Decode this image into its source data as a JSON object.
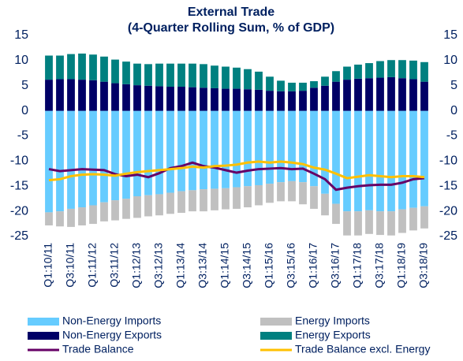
{
  "chart_data": {
    "type": "bar",
    "title": "External Trade",
    "subtitle": "(4-Quarter Rolling Sum, % of GDP)",
    "categories": [
      "Q1:10/11",
      null,
      "Q3:10/11",
      null,
      "Q1:11/12",
      null,
      "Q3:11/12",
      null,
      "Q1:12/13",
      null,
      "Q3:12/13",
      null,
      "Q1:13/14",
      null,
      "Q3:13/14",
      null,
      "Q1:14/15",
      null,
      "Q3:14/15",
      null,
      "Q1:15/16",
      null,
      "Q3:15/16",
      null,
      "Q1:16/17",
      null,
      "Q3:16/17",
      null,
      "Q1:17/18",
      null,
      "Q3:17/18",
      null,
      "Q1:18/19",
      null,
      "Q3:18/19"
    ],
    "series": [
      {
        "name": "Non-Energy Imports",
        "type": "bar",
        "color": "#66ccff",
        "values": [
          -20.2,
          -20.0,
          -19.5,
          -19.2,
          -18.8,
          -18.2,
          -17.8,
          -17.5,
          -17.0,
          -16.8,
          -16.6,
          -16.3,
          -16.0,
          -15.8,
          -15.6,
          -15.5,
          -15.4,
          -15.2,
          -15.0,
          -14.8,
          -14.5,
          -14.2,
          -14.0,
          -14.2,
          -15.0,
          -16.5,
          -18.5,
          -20.0,
          -20.0,
          -19.8,
          -20.0,
          -20.0,
          -19.6,
          -19.3,
          -19.0
        ]
      },
      {
        "name": "Energy Imports",
        "type": "bar",
        "color": "#c0c0c0",
        "values": [
          -2.6,
          -3.0,
          -3.6,
          -3.6,
          -3.7,
          -3.8,
          -4.0,
          -4.0,
          -4.3,
          -4.2,
          -4.2,
          -4.2,
          -4.3,
          -4.2,
          -4.4,
          -4.3,
          -4.2,
          -4.3,
          -4.2,
          -4.0,
          -3.8,
          -3.8,
          -4.0,
          -4.4,
          -4.5,
          -4.3,
          -4.0,
          -4.8,
          -4.8,
          -4.7,
          -4.7,
          -4.8,
          -4.7,
          -4.5,
          -4.4
        ]
      },
      {
        "name": "Non-Energy Exports",
        "type": "bar",
        "color": "#000066",
        "values": [
          6.2,
          6.3,
          6.3,
          6.2,
          6.1,
          5.8,
          5.5,
          5.3,
          5.1,
          5.0,
          4.9,
          4.8,
          4.8,
          4.7,
          4.6,
          4.5,
          4.4,
          4.4,
          4.3,
          4.2,
          4.0,
          3.9,
          3.9,
          4.0,
          4.6,
          5.0,
          5.8,
          6.2,
          6.4,
          6.5,
          6.6,
          6.7,
          6.5,
          6.3,
          5.8
        ]
      },
      {
        "name": "Energy Exports",
        "type": "bar",
        "color": "#008080",
        "values": [
          4.8,
          4.7,
          5.0,
          5.2,
          5.1,
          5.0,
          4.7,
          4.5,
          4.3,
          4.3,
          4.5,
          4.6,
          4.6,
          4.7,
          4.7,
          4.5,
          4.4,
          4.2,
          4.0,
          3.6,
          2.8,
          2.1,
          1.7,
          1.6,
          1.3,
          1.8,
          2.1,
          2.6,
          2.8,
          3.0,
          3.3,
          3.4,
          3.6,
          3.7,
          3.9
        ]
      },
      {
        "name": "Trade Balance",
        "type": "line",
        "color": "#660066",
        "values": [
          -11.6,
          -12.0,
          -11.8,
          -11.6,
          -11.7,
          -11.8,
          -12.6,
          -13.0,
          -12.7,
          -13.2,
          -12.4,
          -11.4,
          -11.0,
          -10.3,
          -11.0,
          -11.3,
          -11.8,
          -12.3,
          -11.9,
          -11.6,
          -11.5,
          -11.4,
          -11.6,
          -11.5,
          -12.5,
          -13.6,
          -15.7,
          -15.3,
          -15.0,
          -14.8,
          -14.7,
          -14.7,
          -14.3,
          -13.6,
          -13.4
        ]
      },
      {
        "name": "Trade Balance excl. Energy",
        "type": "line",
        "color": "#ffc000",
        "values": [
          -13.8,
          -13.6,
          -13.0,
          -12.7,
          -12.6,
          -12.7,
          -12.9,
          -12.5,
          -12.2,
          -12.0,
          -11.8,
          -11.6,
          -11.4,
          -11.1,
          -11.3,
          -11.0,
          -10.9,
          -10.7,
          -10.3,
          -10.1,
          -10.3,
          -10.1,
          -10.3,
          -10.6,
          -11.3,
          -11.7,
          -12.5,
          -13.4,
          -13.1,
          -12.8,
          -13.0,
          -13.2,
          -13.0,
          -13.0,
          -13.2
        ]
      }
    ],
    "ylim": [
      -25,
      15
    ],
    "yticks": [
      -25,
      -20,
      -15,
      -10,
      -5,
      0,
      5,
      10,
      15
    ],
    "y2lim": [
      -25,
      15
    ],
    "y2ticks": [
      -25,
      -20,
      -15,
      -10,
      -5,
      0,
      5,
      10,
      15
    ],
    "stacked": true
  }
}
